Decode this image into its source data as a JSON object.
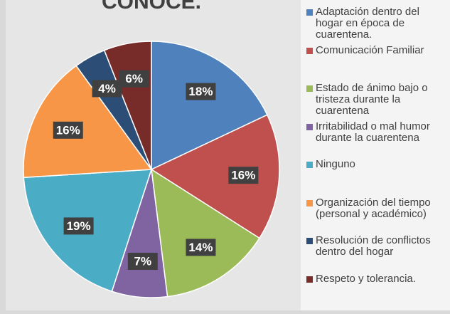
{
  "chart_data": {
    "type": "pie",
    "title": "conoce.",
    "categories": [
      "Adaptación dentro del hogar en época de cuarentena.",
      "Comunicación Familiar",
      "Estado de ánimo bajo o tristeza durante la cuarentena",
      "Irritabilidad o mal humor durante la cuarentena",
      "Ninguno",
      "Organización del tiempo (personal y académico)",
      "Resolución de conflictos dentro del hogar",
      "Respeto y tolerancia."
    ],
    "values": [
      18,
      16,
      14,
      7,
      19,
      16,
      4,
      6
    ],
    "value_labels": [
      "18%",
      "16%",
      "14%",
      "7%",
      "19%",
      "16%",
      "4%",
      "6%"
    ],
    "colors": [
      "#4f81bd",
      "#c0504d",
      "#9bbb59",
      "#8064a2",
      "#4bacc6",
      "#f79646",
      "#2c4d75",
      "#772c2a"
    ],
    "legend": "right"
  }
}
